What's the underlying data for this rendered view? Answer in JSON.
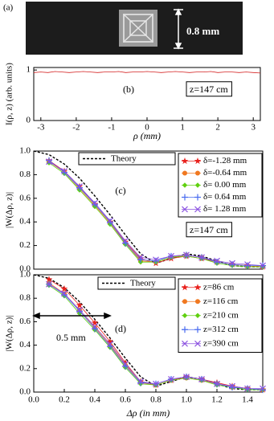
{
  "panel_a": {
    "label": "(a)",
    "scale": "0.8 mm"
  },
  "chart_data": [
    {
      "type": "line",
      "label": "(b)",
      "annotation": "z=147 cm",
      "x_label": "ρ (mm)",
      "y_label": "I(ρ, z) (arb. units)",
      "xlim": [
        -3.2,
        3.2
      ],
      "xticks": [
        -3,
        -2,
        -1,
        0,
        1,
        2,
        3
      ],
      "ylim": [
        0,
        1.05
      ],
      "yticks": [
        0,
        1
      ],
      "series": [
        {
          "color": "#d42020",
          "x": [
            -3.2,
            -3.0,
            -2.8,
            -2.6,
            -2.4,
            -2.2,
            -2.0,
            -1.8,
            -1.6,
            -1.4,
            -1.2,
            -1.0,
            -0.8,
            -0.6,
            -0.4,
            -0.2,
            0.0,
            0.2,
            0.4,
            0.6,
            0.8,
            1.0,
            1.2,
            1.4,
            1.6,
            1.8,
            2.0,
            2.2,
            2.4,
            2.6,
            2.8,
            3.0,
            3.2
          ],
          "values": [
            0.95,
            0.96,
            0.95,
            0.97,
            0.96,
            0.95,
            0.96,
            0.97,
            0.96,
            0.95,
            0.96,
            0.96,
            0.97,
            0.95,
            0.96,
            0.96,
            0.97,
            0.96,
            0.95,
            0.96,
            0.97,
            0.96,
            0.95,
            0.96,
            0.96,
            0.97,
            0.95,
            0.96,
            0.96,
            0.95,
            0.96,
            0.95,
            0.94
          ]
        }
      ]
    },
    {
      "type": "line",
      "label": "(c)",
      "annotation": "z=147 cm",
      "y_label": "|W(Δρ, z)|",
      "xlim": [
        0,
        1.5
      ],
      "ylim": [
        0,
        1.0
      ],
      "yticks": [
        {
          "value": 0,
          "label": "0.0"
        },
        0.2,
        0.4,
        0.6,
        0.8,
        {
          "value": 1,
          "label": "1.0"
        }
      ],
      "series": [
        {
          "name": "Theory",
          "color": "#000000",
          "dash": true,
          "x": [
            0.0,
            0.1,
            0.2,
            0.3,
            0.4,
            0.5,
            0.6,
            0.7,
            0.8,
            0.9,
            1.0,
            1.1,
            1.2,
            1.3,
            1.4,
            1.5
          ],
          "values": [
            1.0,
            0.97,
            0.89,
            0.77,
            0.62,
            0.46,
            0.29,
            0.13,
            0.05,
            0.09,
            0.13,
            0.11,
            0.07,
            0.03,
            0.02,
            0.02
          ]
        },
        {
          "name": "δ=-1.28 mm",
          "color": "#e8201c",
          "marker": "star",
          "x": [
            0.1,
            0.2,
            0.3,
            0.4,
            0.5,
            0.6,
            0.7,
            0.8,
            0.9,
            1.0,
            1.1,
            1.2,
            1.3,
            1.4,
            1.5
          ],
          "values": [
            0.92,
            0.83,
            0.7,
            0.55,
            0.4,
            0.23,
            0.09,
            0.05,
            0.09,
            0.11,
            0.09,
            0.06,
            0.04,
            0.03,
            0.02
          ]
        },
        {
          "name": "δ=-0.64 mm",
          "color": "#f07820",
          "marker": "circle",
          "x": [
            0.1,
            0.2,
            0.3,
            0.4,
            0.5,
            0.6,
            0.7,
            0.8,
            0.9,
            1.0,
            1.1,
            1.2,
            1.3,
            1.4,
            1.5
          ],
          "values": [
            0.91,
            0.82,
            0.68,
            0.54,
            0.39,
            0.22,
            0.07,
            0.06,
            0.1,
            0.12,
            0.1,
            0.06,
            0.04,
            0.03,
            0.02
          ]
        },
        {
          "name": "δ= 0.00 mm",
          "color": "#60d010",
          "marker": "diamond",
          "x": [
            0.1,
            0.2,
            0.3,
            0.4,
            0.5,
            0.6,
            0.7,
            0.8,
            0.9,
            1.0,
            1.1,
            1.2,
            1.3,
            1.4,
            1.5
          ],
          "values": [
            0.9,
            0.81,
            0.67,
            0.53,
            0.38,
            0.21,
            0.06,
            0.06,
            0.1,
            0.11,
            0.09,
            0.05,
            0.03,
            0.02,
            0.02
          ]
        },
        {
          "name": "δ= 0.64 mm",
          "color": "#4a6cf0",
          "marker": "plus",
          "x": [
            0.1,
            0.2,
            0.3,
            0.4,
            0.5,
            0.6,
            0.7,
            0.8,
            0.9,
            1.0,
            1.1,
            1.2,
            1.3,
            1.4,
            1.5
          ],
          "values": [
            0.92,
            0.82,
            0.69,
            0.55,
            0.4,
            0.22,
            0.08,
            0.07,
            0.11,
            0.12,
            0.1,
            0.06,
            0.04,
            0.03,
            0.03
          ]
        },
        {
          "name": "δ= 1.28 mm",
          "color": "#8a50e0",
          "marker": "x",
          "x": [
            0.1,
            0.2,
            0.3,
            0.4,
            0.5,
            0.6,
            0.7,
            0.8,
            0.9,
            1.0,
            1.1,
            1.2,
            1.3,
            1.4,
            1.5
          ],
          "values": [
            0.91,
            0.83,
            0.7,
            0.56,
            0.41,
            0.24,
            0.1,
            0.08,
            0.11,
            0.12,
            0.1,
            0.07,
            0.05,
            0.04,
            0.03
          ]
        }
      ]
    },
    {
      "type": "line",
      "label": "(d)",
      "annotation": "0.5 mm",
      "x_label": "Δρ (in mm)",
      "y_label": "|W(Δρ, z)|",
      "xlim": [
        0,
        1.5
      ],
      "xticks": [
        {
          "value": 0,
          "label": "0.0"
        },
        0.2,
        0.4,
        0.6,
        0.8,
        {
          "value": 1,
          "label": "1.0"
        },
        1.2,
        1.4
      ],
      "ylim": [
        0,
        1.0
      ],
      "yticks": [
        {
          "value": 0,
          "label": "0.0"
        },
        0.2,
        0.4,
        0.6,
        0.8,
        {
          "value": 1,
          "label": "1.0"
        }
      ],
      "series": [
        {
          "name": "Theory",
          "color": "#000000",
          "dash": true,
          "x": [
            0.0,
            0.1,
            0.2,
            0.3,
            0.4,
            0.5,
            0.6,
            0.7,
            0.8,
            0.9,
            1.0,
            1.1,
            1.2,
            1.3,
            1.4,
            1.5
          ],
          "values": [
            1.0,
            0.97,
            0.89,
            0.77,
            0.62,
            0.46,
            0.29,
            0.13,
            0.05,
            0.09,
            0.13,
            0.11,
            0.07,
            0.03,
            0.02,
            0.02
          ]
        },
        {
          "name": "z=86 cm",
          "color": "#e8201c",
          "marker": "star",
          "x": [
            0.1,
            0.2,
            0.3,
            0.4,
            0.5,
            0.6,
            0.7,
            0.8,
            0.9,
            1.0,
            1.1,
            1.2,
            1.3,
            1.4,
            1.5
          ],
          "values": [
            0.96,
            0.88,
            0.74,
            0.59,
            0.43,
            0.25,
            0.09,
            0.06,
            0.1,
            0.13,
            0.11,
            0.08,
            0.05,
            0.03,
            0.02
          ]
        },
        {
          "name": "z=116 cm",
          "color": "#f07820",
          "marker": "circle",
          "x": [
            0.1,
            0.2,
            0.3,
            0.4,
            0.5,
            0.6,
            0.7,
            0.8,
            0.9,
            1.0,
            1.1,
            1.2,
            1.3,
            1.4,
            1.5
          ],
          "values": [
            0.93,
            0.84,
            0.7,
            0.55,
            0.4,
            0.23,
            0.08,
            0.06,
            0.1,
            0.12,
            0.1,
            0.07,
            0.04,
            0.03,
            0.02
          ]
        },
        {
          "name": "z=210 cm",
          "color": "#60d010",
          "marker": "diamond",
          "x": [
            0.1,
            0.2,
            0.3,
            0.4,
            0.5,
            0.6,
            0.7,
            0.8,
            0.9,
            1.0,
            1.1,
            1.2,
            1.3,
            1.4,
            1.5
          ],
          "values": [
            0.91,
            0.82,
            0.67,
            0.53,
            0.38,
            0.21,
            0.07,
            0.06,
            0.1,
            0.12,
            0.1,
            0.06,
            0.04,
            0.02,
            0.02
          ]
        },
        {
          "name": "z=312 cm",
          "color": "#4a6cf0",
          "marker": "plus",
          "x": [
            0.1,
            0.2,
            0.3,
            0.4,
            0.5,
            0.6,
            0.7,
            0.8,
            0.9,
            1.0,
            1.1,
            1.2,
            1.3,
            1.4,
            1.5
          ],
          "values": [
            0.92,
            0.83,
            0.69,
            0.54,
            0.39,
            0.22,
            0.08,
            0.07,
            0.11,
            0.13,
            0.11,
            0.07,
            0.04,
            0.03,
            0.02
          ]
        },
        {
          "name": "z=390 cm",
          "color": "#8a50e0",
          "marker": "x",
          "x": [
            0.1,
            0.2,
            0.3,
            0.4,
            0.5,
            0.6,
            0.7,
            0.8,
            0.9,
            1.0,
            1.1,
            1.2,
            1.3,
            1.4,
            1.5
          ],
          "values": [
            0.92,
            0.84,
            0.7,
            0.56,
            0.41,
            0.24,
            0.09,
            0.07,
            0.11,
            0.13,
            0.11,
            0.07,
            0.05,
            0.03,
            0.03
          ]
        }
      ]
    }
  ]
}
